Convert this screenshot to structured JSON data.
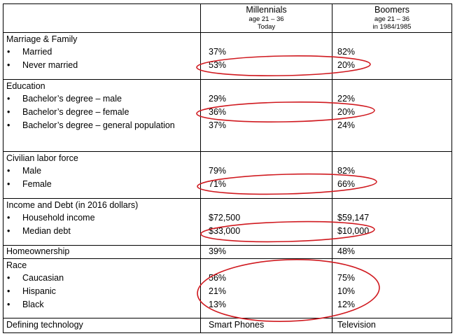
{
  "header": {
    "millennials": {
      "title": "Millennials",
      "age": "age 21 – 36",
      "when": "Today"
    },
    "boomers": {
      "title": "Boomers",
      "age": "age 21 – 36",
      "when": "in 1984/1985"
    }
  },
  "bullet": "•",
  "sections": {
    "marriage": {
      "title": "Marriage & Family",
      "rows": [
        {
          "label": "Married",
          "m": "37%",
          "b": "82%"
        },
        {
          "label": "Never married",
          "m": "53%",
          "b": "20%"
        }
      ]
    },
    "education": {
      "title": "Education",
      "rows": [
        {
          "label": "Bachelor’s degree – male",
          "m": "29%",
          "b": "22%"
        },
        {
          "label": "Bachelor’s degree – female",
          "m": "36%",
          "b": "20%"
        },
        {
          "label": "Bachelor’s degree – general population",
          "m": "37%",
          "b": "24%"
        }
      ]
    },
    "labor": {
      "title": "Civilian labor force",
      "rows": [
        {
          "label": "Male",
          "m": "79%",
          "b": "82%"
        },
        {
          "label": "Female",
          "m": "71%",
          "b": "66%"
        }
      ]
    },
    "income": {
      "title": "Income and Debt (in 2016 dollars)",
      "rows": [
        {
          "label": "Household income",
          "m": "$72,500",
          "b": "$59,147"
        },
        {
          "label": "Median debt",
          "m": "$33,000",
          "b": "$10,000"
        }
      ]
    },
    "home": {
      "title": "Homeownership",
      "m": "39%",
      "b": "48%"
    },
    "race": {
      "title": "Race",
      "rows": [
        {
          "label": "Caucasian",
          "m": "56%",
          "b": "75%"
        },
        {
          "label": "Hispanic",
          "m": "21%",
          "b": "10%"
        },
        {
          "label": "Black",
          "m": "13%",
          "b": "12%"
        }
      ]
    },
    "tech": {
      "title": "Defining technology",
      "m": "Smart Phones",
      "b": "Television"
    }
  },
  "highlight_color": "#d0191f"
}
